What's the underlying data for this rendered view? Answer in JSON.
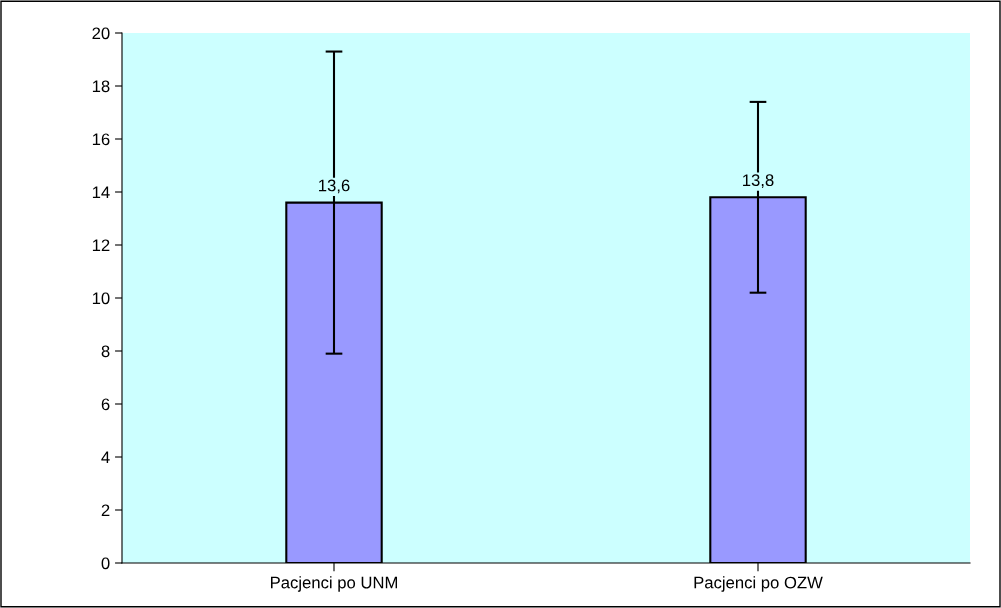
{
  "chart_data": {
    "type": "bar",
    "categories": [
      "Pacjenci po UNM",
      "Pacjenci po OZW"
    ],
    "values": [
      13.6,
      13.8
    ],
    "errors": [
      5.7,
      3.6
    ],
    "value_labels": [
      "13,6",
      "13,8"
    ],
    "color": "#9999ff",
    "ylim": [
      0,
      20
    ],
    "yticks": [
      0,
      2,
      4,
      6,
      8,
      10,
      12,
      14,
      16,
      18,
      20
    ],
    "grid": false,
    "legend": false
  }
}
